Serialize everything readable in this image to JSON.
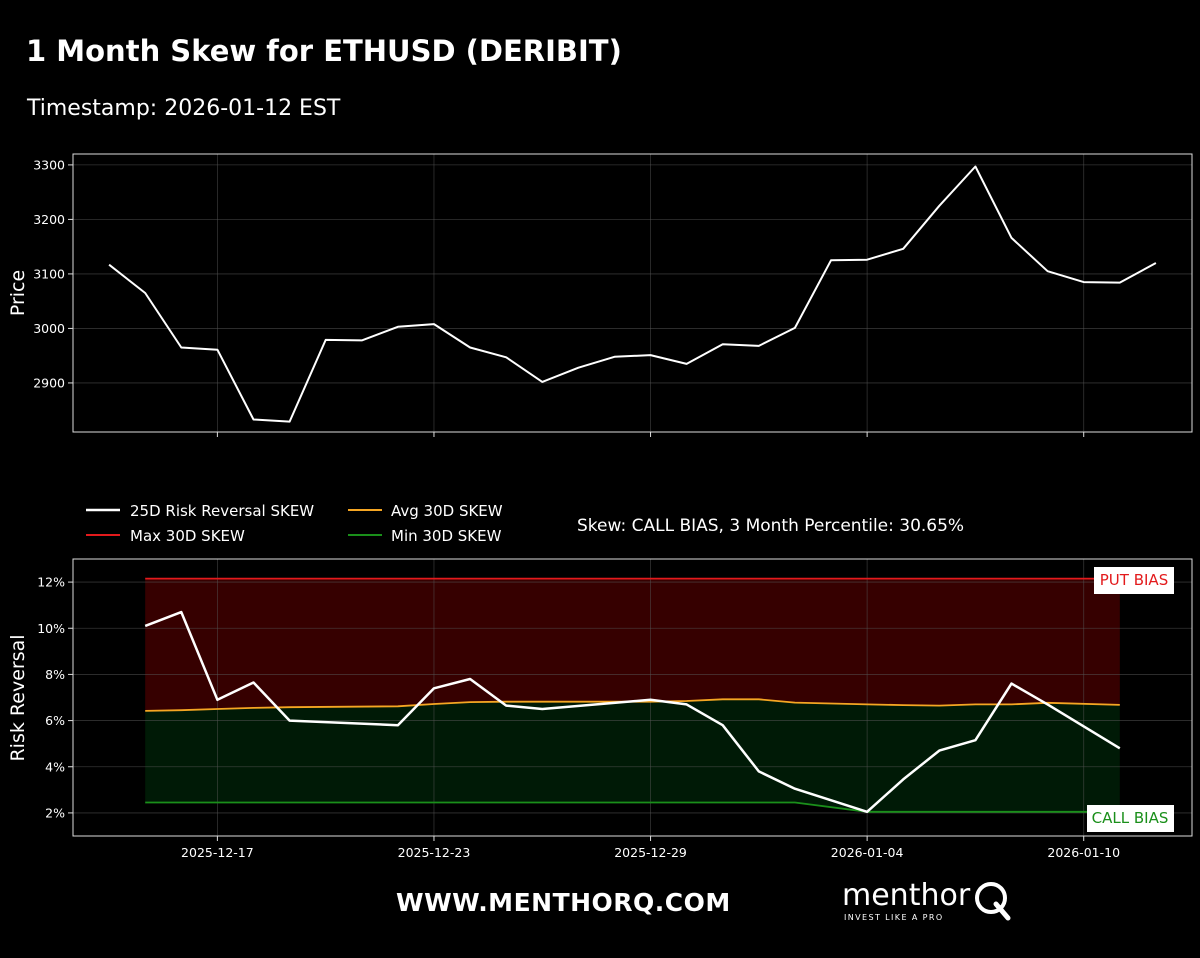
{
  "header": {
    "title": "1 Month Skew for ETHUSD (DERIBIT)",
    "subtitle": "Timestamp: 2026-01-12 EST"
  },
  "footer": {
    "url": "WWW.MENTHORQ.COM",
    "logo_word": "menthor",
    "logo_tagline": "INVEST LIKE A PRO"
  },
  "colors": {
    "background": "#000000",
    "price_line": "#ffffff",
    "skew_line": "#ffffff",
    "max_line": "#e31a1c",
    "avg_line": "#f5a623",
    "min_line": "#1a8f1a",
    "put_fill": "#360000",
    "call_fill": "#001a06",
    "grid": "#555555"
  },
  "chart_data": [
    {
      "type": "line",
      "ylabel": "Price",
      "ylim": [
        2810,
        3320
      ],
      "yticks": [
        2900,
        3000,
        3100,
        3200,
        3300
      ],
      "x": [
        "2025-12-14",
        "2025-12-15",
        "2025-12-16",
        "2025-12-17",
        "2025-12-18",
        "2025-12-19",
        "2025-12-20",
        "2025-12-21",
        "2025-12-22",
        "2025-12-23",
        "2025-12-24",
        "2025-12-25",
        "2025-12-26",
        "2025-12-27",
        "2025-12-28",
        "2025-12-29",
        "2025-12-30",
        "2025-12-31",
        "2026-01-01",
        "2026-01-02",
        "2026-01-03",
        "2026-01-04",
        "2026-01-05",
        "2026-01-06",
        "2026-01-07",
        "2026-01-08",
        "2026-01-09",
        "2026-01-10",
        "2026-01-11",
        "2026-01-12"
      ],
      "xticks": [
        "2025-12-17",
        "2025-12-23",
        "2025-12-29",
        "2026-01-04",
        "2026-01-10"
      ],
      "grid": true,
      "series": [
        {
          "values": [
            3117,
            3065,
            2965,
            2961,
            2833,
            2829,
            2979,
            2978,
            3003,
            3008,
            2965,
            2947,
            2902,
            2928,
            2948,
            2951,
            2935,
            2971,
            2968,
            3001,
            3125,
            3126,
            3146,
            3225,
            3297,
            3166,
            3105,
            3085,
            3084,
            3120
          ]
        }
      ]
    },
    {
      "type": "line",
      "ylabel": "Risk Reversal",
      "ylim": [
        1.0,
        13.0
      ],
      "yticks": [
        2,
        4,
        6,
        8,
        10,
        12
      ],
      "ytick_suffix": "%",
      "x": [
        "2025-12-15",
        "2025-12-16",
        "2025-12-17",
        "2025-12-18",
        "2025-12-19",
        "2025-12-22",
        "2025-12-23",
        "2025-12-24",
        "2025-12-25",
        "2025-12-26",
        "2025-12-29",
        "2025-12-30",
        "2025-12-31",
        "2026-01-01",
        "2026-01-02",
        "2026-01-04",
        "2026-01-05",
        "2026-01-06",
        "2026-01-07",
        "2026-01-08",
        "2026-01-09",
        "2026-01-11"
      ],
      "xticks": [
        "2025-12-17",
        "2025-12-23",
        "2025-12-29",
        "2026-01-04",
        "2026-01-10"
      ],
      "grid": true,
      "legend_position": "top-left",
      "series": [
        {
          "name": "25D Risk Reversal SKEW",
          "values": [
            10.1,
            10.7,
            6.9,
            7.65,
            6.0,
            5.8,
            7.4,
            7.8,
            6.65,
            6.5,
            6.9,
            6.7,
            5.8,
            3.8,
            3.05,
            2.05,
            3.45,
            4.7,
            5.15,
            7.6,
            6.7,
            4.8
          ]
        },
        {
          "name": "Avg 30D SKEW",
          "values": [
            6.42,
            6.45,
            6.5,
            6.55,
            6.58,
            6.62,
            6.72,
            6.8,
            6.82,
            6.82,
            6.82,
            6.85,
            6.92,
            6.92,
            6.78,
            6.7,
            6.67,
            6.65,
            6.7,
            6.7,
            6.77,
            6.68
          ]
        },
        {
          "name": "Max 30D SKEW",
          "values": [
            12.15,
            12.15,
            12.15,
            12.15,
            12.15,
            12.15,
            12.15,
            12.15,
            12.15,
            12.15,
            12.15,
            12.15,
            12.15,
            12.15,
            12.15,
            12.15,
            12.15,
            12.15,
            12.15,
            12.15,
            12.15,
            12.15
          ]
        },
        {
          "name": "Min 30D SKEW",
          "values": [
            2.45,
            2.45,
            2.45,
            2.45,
            2.45,
            2.45,
            2.45,
            2.45,
            2.45,
            2.45,
            2.45,
            2.45,
            2.45,
            2.45,
            2.45,
            2.05,
            2.05,
            2.05,
            2.05,
            2.05,
            2.05,
            2.05
          ]
        }
      ],
      "annotations": {
        "status": "Skew: CALL BIAS, 3 Month Percentile: 30.65%",
        "put_bias": "PUT BIAS",
        "call_bias": "CALL BIAS"
      }
    }
  ]
}
